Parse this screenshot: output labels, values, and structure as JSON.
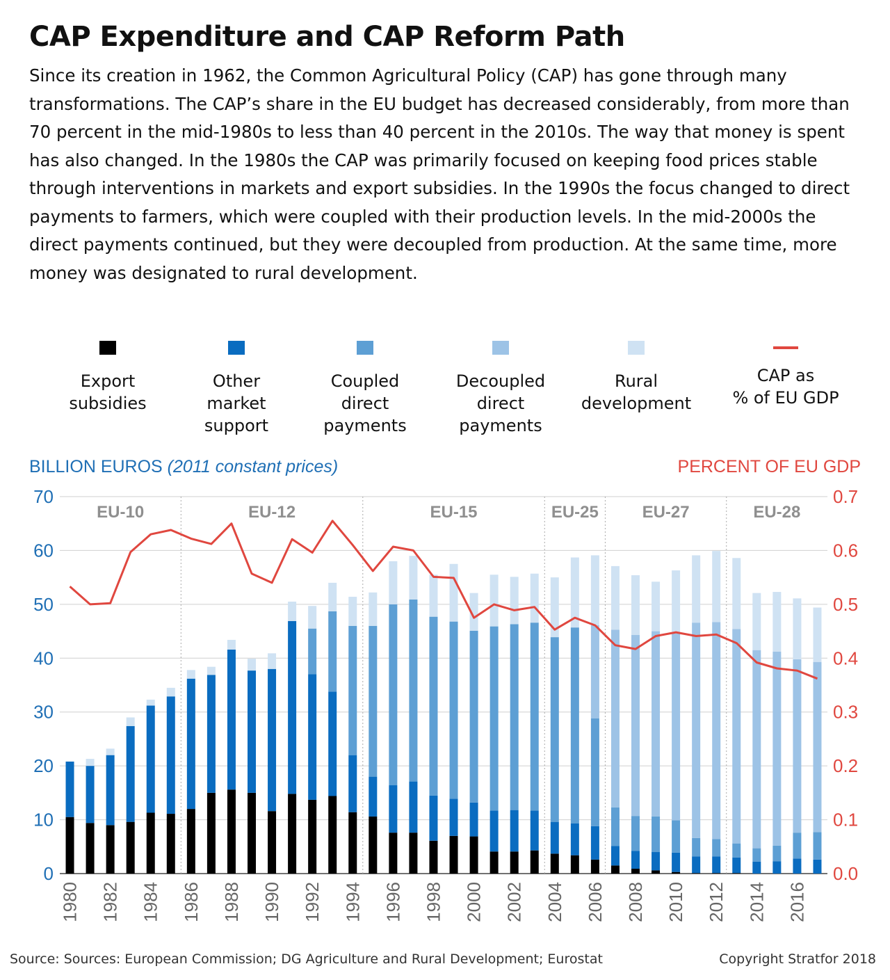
{
  "header": {
    "title": "CAP Expenditure and CAP Reform Path",
    "intro": "Since its creation in 1962, the Common Agricultural Policy (CAP) has gone through many transformations. The CAP’s share in the EU budget has decreased considerably, from more than 70 percent in the mid-1980s to less than 40 percent in the 2010s. The way that money is spent has also changed. In the 1980s the CAP was primarily focused on keeping food prices stable through interventions in markets and export subsidies. In the 1990s the focus changed to direct payments to farmers, which were coupled with their production levels. In the mid-2000s the direct payments continued, but they were decoupled from production. At the same time, more money was designated to rural development."
  },
  "legend": [
    {
      "label_lines": [
        "Export",
        "subsidies"
      ],
      "color": "#000000",
      "kind": "swatch"
    },
    {
      "label_lines": [
        "Other",
        "market",
        "support"
      ],
      "color": "#0a6cc0",
      "kind": "swatch"
    },
    {
      "label_lines": [
        "Coupled",
        "direct",
        "payments"
      ],
      "color": "#5d9fd4",
      "kind": "swatch"
    },
    {
      "label_lines": [
        "Decoupled",
        "direct",
        "payments"
      ],
      "color": "#9dc3e6",
      "kind": "swatch"
    },
    {
      "label_lines": [
        "Rural",
        "development"
      ],
      "color": "#cfe2f3",
      "kind": "swatch"
    },
    {
      "label_lines": [
        "CAP as",
        "% of EU GDP"
      ],
      "color": "#e0473f",
      "kind": "line"
    }
  ],
  "axis_titles": {
    "left_main": "BILLION EUROS",
    "left_sub": "(2011 constant prices)",
    "right": "PERCENT OF EU GDP"
  },
  "footer": {
    "source": "Source: Sources: European Commission; DG Agriculture and Rural Development; Eurostat",
    "copyright": "Copyright Stratfor 2018"
  },
  "chart_data": {
    "type": "bar",
    "stacked": true,
    "title": "CAP Expenditure and CAP Reform Path",
    "categories": [
      "1980",
      "1981",
      "1982",
      "1983",
      "1984",
      "1985",
      "1986",
      "1987",
      "1988",
      "1989",
      "1990",
      "1991",
      "1992",
      "1993",
      "1994",
      "1995",
      "1996",
      "1997",
      "1998",
      "1999",
      "2000",
      "2001",
      "2002",
      "2003",
      "2004",
      "2005",
      "2006",
      "2007",
      "2008",
      "2009",
      "2010",
      "2011",
      "2012",
      "2013",
      "2014",
      "2015",
      "2016",
      "2017"
    ],
    "x_tick_labels": [
      "1980",
      "1982",
      "1984",
      "1986",
      "1988",
      "1990",
      "1992",
      "1994",
      "1996",
      "1998",
      "2000",
      "2002",
      "2004",
      "2006",
      "2008",
      "2010",
      "2012",
      "2014",
      "2016"
    ],
    "y_left": {
      "min": 0,
      "max": 70,
      "ticks": [
        0,
        10,
        20,
        30,
        40,
        50,
        60,
        70
      ],
      "color": "#1f6fb5"
    },
    "y_right": {
      "min": 0,
      "max": 0.7,
      "ticks": [
        "0.0",
        "0.1",
        "0.2",
        "0.3",
        "0.4",
        "0.5",
        "0.6",
        "0.7"
      ],
      "color": "#e0473f"
    },
    "grid": true,
    "series": [
      {
        "name": "Export subsidies",
        "color": "#000000",
        "values": [
          10.5,
          9.4,
          9.0,
          9.6,
          11.3,
          11.1,
          12.0,
          15.0,
          15.6,
          15.0,
          11.6,
          14.8,
          13.7,
          14.4,
          11.4,
          10.6,
          7.6,
          7.6,
          6.1,
          7.0,
          6.9,
          4.1,
          4.1,
          4.3,
          3.7,
          3.4,
          2.6,
          1.5,
          0.9,
          0.6,
          0.3,
          0.1,
          0.1,
          0.1,
          0.0,
          0.0,
          0.0,
          0.0
        ]
      },
      {
        "name": "Other market support",
        "color": "#0a6cc0",
        "values": [
          10.3,
          10.6,
          13.0,
          17.8,
          19.9,
          21.8,
          24.2,
          21.9,
          26.0,
          22.7,
          26.4,
          32.1,
          23.3,
          19.4,
          10.6,
          7.4,
          8.8,
          9.5,
          8.4,
          6.9,
          6.3,
          7.6,
          7.7,
          7.4,
          5.9,
          5.9,
          6.2,
          3.6,
          3.3,
          3.4,
          3.6,
          3.1,
          3.1,
          2.9,
          2.2,
          2.3,
          2.8,
          2.6
        ]
      },
      {
        "name": "Coupled direct payments",
        "color": "#5d9fd4",
        "values": [
          0,
          0,
          0,
          0,
          0,
          0,
          0,
          0,
          0,
          0,
          0,
          0,
          8.5,
          14.9,
          24.0,
          28.0,
          33.6,
          33.8,
          33.2,
          32.9,
          31.9,
          34.2,
          34.5,
          34.9,
          34.3,
          36.4,
          20.0,
          7.2,
          6.5,
          6.6,
          6.0,
          3.4,
          3.2,
          2.6,
          2.5,
          2.9,
          4.8,
          5.1
        ]
      },
      {
        "name": "Decoupled direct payments",
        "color": "#9dc3e6",
        "values": [
          0,
          0,
          0,
          0,
          0,
          0,
          0,
          0,
          0,
          0,
          0,
          0,
          0,
          0,
          0,
          0,
          0,
          0,
          0,
          0,
          0,
          0,
          0,
          0,
          0,
          0,
          17.3,
          33.0,
          33.6,
          34.4,
          34.7,
          40.0,
          40.3,
          39.8,
          36.8,
          36.0,
          32.2,
          31.6
        ]
      },
      {
        "name": "Rural development",
        "color": "#cfe2f3",
        "values": [
          0,
          1.3,
          1.2,
          1.6,
          1.1,
          1.6,
          1.6,
          1.5,
          1.8,
          2.2,
          2.9,
          3.6,
          4.2,
          5.3,
          5.4,
          6.2,
          8.0,
          8.1,
          7.8,
          10.7,
          7.0,
          9.6,
          8.8,
          9.1,
          11.1,
          13.0,
          13.0,
          11.8,
          11.1,
          9.2,
          11.7,
          12.5,
          13.2,
          13.2,
          10.6,
          11.1,
          11.3,
          10.1
        ]
      }
    ],
    "line_series": {
      "name": "CAP as % of EU GDP",
      "color": "#e0473f",
      "axis": "right",
      "values": [
        0.533,
        0.5,
        0.502,
        0.597,
        0.63,
        0.638,
        0.622,
        0.612,
        0.65,
        0.557,
        0.54,
        0.621,
        0.596,
        0.655,
        0.61,
        0.562,
        0.607,
        0.6,
        0.551,
        0.549,
        0.475,
        0.5,
        0.489,
        0.495,
        0.453,
        0.475,
        0.461,
        0.424,
        0.417,
        0.441,
        0.448,
        0.441,
        0.444,
        0.428,
        0.392,
        0.381,
        0.377,
        0.362
      ]
    },
    "eras": [
      {
        "label": "EU-10",
        "start": "1980",
        "end": "1985"
      },
      {
        "label": "EU-12",
        "start": "1986",
        "end": "1994"
      },
      {
        "label": "EU-15",
        "start": "1995",
        "end": "2003"
      },
      {
        "label": "EU-25",
        "start": "2004",
        "end": "2006"
      },
      {
        "label": "EU-27",
        "start": "2007",
        "end": "2012"
      },
      {
        "label": "EU-28",
        "start": "2013",
        "end": "2017"
      }
    ]
  }
}
